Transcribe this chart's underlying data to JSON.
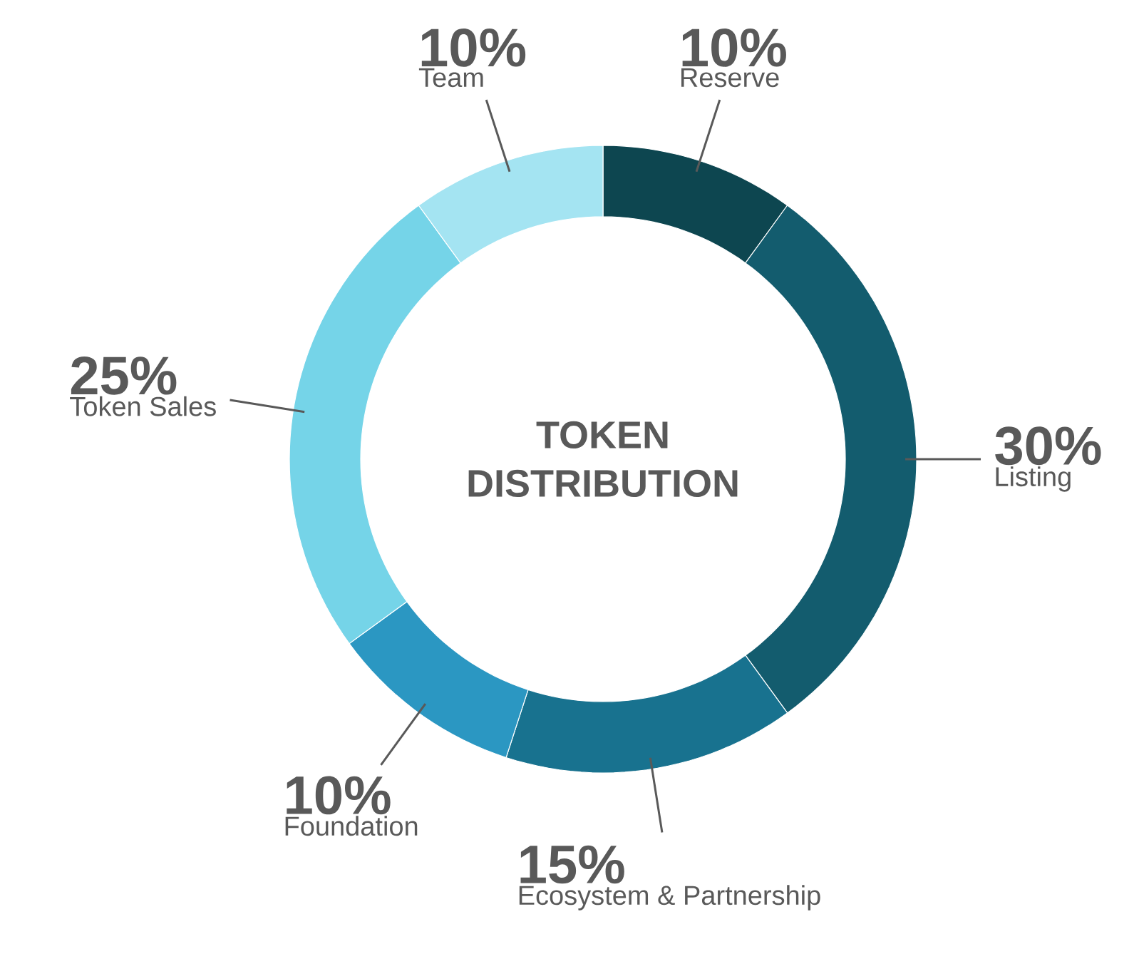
{
  "chart_data": {
    "type": "donut",
    "title": "TOKEN DISTRIBUTION",
    "categories": [
      "Reserve",
      "Listing",
      "Ecosystem & Partnership",
      "Foundation",
      "Token Sales",
      "Team"
    ],
    "values": [
      10,
      30,
      15,
      10,
      25,
      10
    ],
    "value_labels": [
      "10%",
      "30%",
      "15%",
      "10%",
      "25%",
      "10%"
    ],
    "colors": [
      "#0d4650",
      "#135c6e",
      "#18728f",
      "#2b97c2",
      "#75d4e8",
      "#a4e4f2"
    ]
  }
}
